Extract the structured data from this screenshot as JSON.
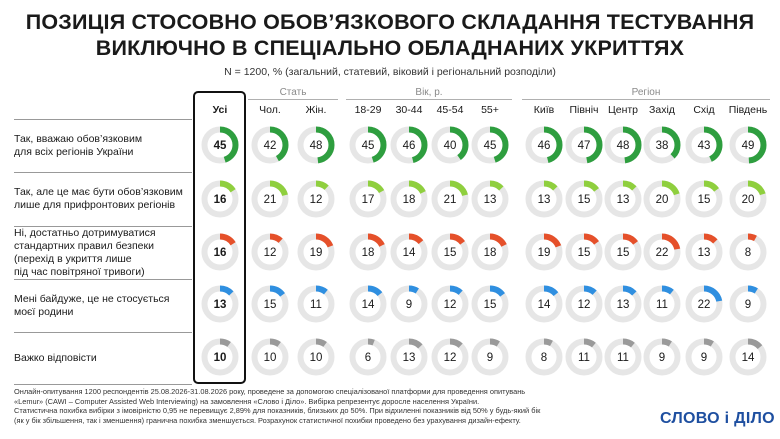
{
  "title_line1": "ПОЗИЦІЯ СТОСОВНО ОБОВ’ЯЗКОВОГО СКЛАДАННЯ ТЕСТУВАННЯ",
  "title_line2": "ВИКЛЮЧНО В СПЕЦІАЛЬНО ОБЛАДНАНИХ УКРИТТЯХ",
  "subtitle": "N = 1200, % (загальний, статевий, віковий і регіональний розподіли)",
  "footer_line1": "Онлайн-опитування 1200 респондентів 25.08.2026-31.08.2026 року, проведене за допомогою спеціалізованої платформи для проведення опитувань",
  "footer_line2": "«Lemur» (CAWI – Computer Assisted Web Interviewing) на замовлення «Слово і Діло». Вибірка репрезентує доросле населення України.",
  "footer_line3": "Статистична похибка вибірки з імовірністю 0,95 не перевищує 2,89% для показників, близьких до 50%. При відхиленні показників від 50% у будь-який бік",
  "footer_line4": "(як у бік збільшення, так і зменшення) гранична похибка зменшується. Розрахунок статистичної похибки проведено без урахування дизайн-ефекту.",
  "logo": "СЛОВО і ДІЛО",
  "colors": {
    "track": "#e6e6e6",
    "green_dark": "#2e9e3f",
    "green_light": "#8fcf3e",
    "orange": "#e5502a",
    "blue": "#2f8fe0",
    "gray": "#9a9a9a"
  },
  "chart_data": {
    "type": "donut-grid",
    "groups": [
      {
        "name": "Стать",
        "columns": [
          "Чол.",
          "Жін."
        ]
      },
      {
        "name": "Вік, р.",
        "columns": [
          "18-29",
          "30-44",
          "45-54",
          "55+"
        ]
      },
      {
        "name": "Регіон",
        "columns": [
          "Київ",
          "Північ",
          "Центр",
          "Захід",
          "Схід",
          "Південь"
        ]
      }
    ],
    "columns": [
      "Усі",
      "Чол.",
      "Жін.",
      "18-29",
      "30-44",
      "45-54",
      "55+",
      "Київ",
      "Північ",
      "Центр",
      "Захід",
      "Схід",
      "Південь"
    ],
    "rows": [
      {
        "label_lines": [
          "Так, вважаю обов’язковим",
          "для всіх регіонів України"
        ],
        "color_key": "green_dark",
        "values": [
          45,
          42,
          48,
          45,
          46,
          40,
          45,
          46,
          47,
          48,
          38,
          43,
          49
        ]
      },
      {
        "label_lines": [
          "Так, але це має бути обов’язковим",
          "лише для прифронтових регіонів"
        ],
        "color_key": "green_light",
        "values": [
          16,
          21,
          12,
          17,
          18,
          21,
          13,
          13,
          15,
          13,
          20,
          15,
          20
        ]
      },
      {
        "label_lines": [
          "Ні, достатньо дотримуватися",
          "стандартних правил безпеки",
          "(перехід в укриття лише",
          "під час повітряної тривоги)"
        ],
        "color_key": "orange",
        "values": [
          16,
          12,
          19,
          18,
          14,
          15,
          18,
          19,
          15,
          15,
          22,
          13,
          8
        ]
      },
      {
        "label_lines": [
          "Мені байдуже, це не стосується",
          "моєї родини"
        ],
        "color_key": "blue",
        "values": [
          13,
          15,
          11,
          14,
          9,
          12,
          15,
          14,
          12,
          13,
          11,
          22,
          9
        ]
      },
      {
        "label_lines": [
          "Важко відповісти"
        ],
        "color_key": "gray",
        "values": [
          10,
          10,
          10,
          6,
          13,
          12,
          9,
          8,
          11,
          11,
          9,
          9,
          14
        ]
      }
    ],
    "value_unit": "%",
    "scale_max": 100
  }
}
